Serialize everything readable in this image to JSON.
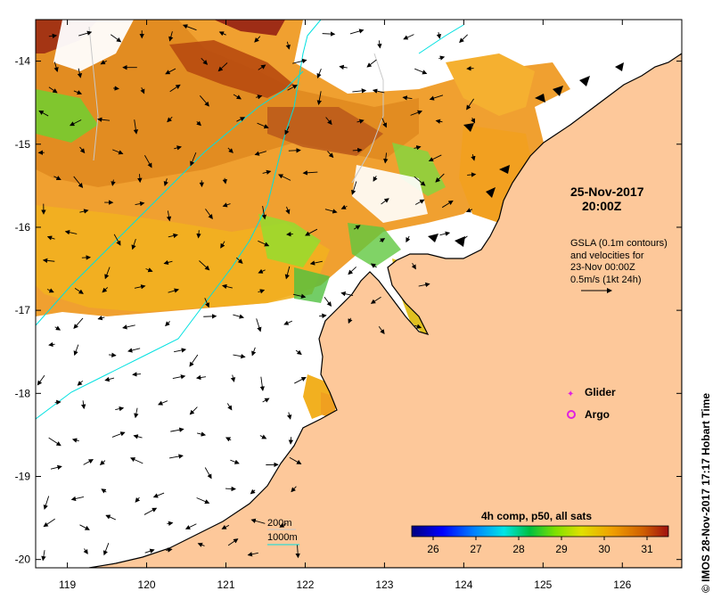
{
  "map": {
    "lon_min": 118.6,
    "lon_max": 126.75,
    "lat_min": -20.1,
    "lat_max": -13.5,
    "lon_ticks": [
      119,
      120,
      121,
      122,
      123,
      124,
      125,
      126
    ],
    "lon_tick_labels": [
      "119",
      "120",
      "121",
      "122",
      "123",
      "124",
      "125",
      "126"
    ],
    "lat_ticks": [
      -14,
      -15,
      -16,
      -17,
      -18,
      -19,
      -20
    ],
    "lat_tick_labels": [
      "-14",
      "-15",
      "-16",
      "-17",
      "-18",
      "-19",
      "-20"
    ]
  },
  "datetime": {
    "date": "25-Nov-2017",
    "time": "20:00Z"
  },
  "gsla_note": {
    "line1": "GSLA (0.1m contours)",
    "line2": "and velocities for",
    "line3": "23-Nov 00:00Z",
    "line4": "0.5m/s (1kt 24h)"
  },
  "legend": {
    "glider": "Glider",
    "argo": "Argo",
    "glider_color": "#e020e0",
    "argo_color": "#e020e0"
  },
  "isobaths": {
    "label_200": "200m",
    "label_1000": "1000m",
    "color_200": "#c8c8c8",
    "color_1000": "#00e0e0"
  },
  "colorbar": {
    "title": "4h comp, p50, all sats",
    "min": 25.5,
    "max": 31.5,
    "ticks": [
      26,
      27,
      28,
      29,
      30,
      31
    ],
    "tick_labels": [
      "26",
      "27",
      "28",
      "29",
      "30",
      "31"
    ],
    "stops": [
      "#00007f",
      "#0000ff",
      "#007fff",
      "#00e5e5",
      "#00c040",
      "#7fe000",
      "#e0e000",
      "#f0a000",
      "#d06000",
      "#a01010"
    ]
  },
  "credit": "© IMOS 28-Nov-2017 17:17 Hobart Time",
  "colors": {
    "land": "#fdc89a",
    "coast": "#000000"
  }
}
